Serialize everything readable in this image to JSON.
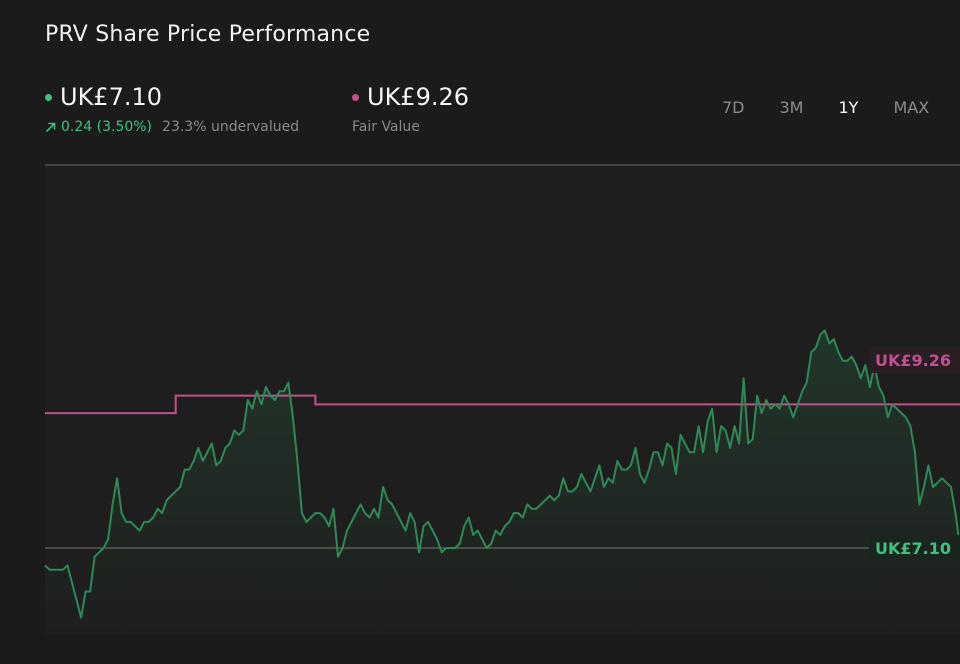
{
  "header": {
    "title": "PRV Share Price Performance",
    "price": "UK£7.10",
    "change": "0.24 (3.50%)",
    "valuation": "23.3% undervalued",
    "fair_value": "UK£9.26",
    "fair_value_label": "Fair Value"
  },
  "range_tabs": [
    {
      "label": "7D",
      "active": false
    },
    {
      "label": "3M",
      "active": false
    },
    {
      "label": "1Y",
      "active": true
    },
    {
      "label": "MAX",
      "active": false
    }
  ],
  "colors": {
    "price": "#3fc27c",
    "price_line": "#2e8a55",
    "fair_value": "#c2508d",
    "background": "#1b1b1b"
  },
  "chart_data": {
    "type": "line",
    "title": "PRV Share Price Performance",
    "xlabel": "",
    "ylabel": "",
    "ylim": [
      6.1,
      11.5
    ],
    "grid": false,
    "series": [
      {
        "key": "price",
        "values": [
          6.9,
          6.85,
          6.85,
          6.85,
          6.85,
          6.9,
          6.7,
          6.5,
          6.3,
          6.6,
          6.6,
          7.0,
          7.05,
          7.1,
          7.2,
          7.6,
          7.9,
          7.5,
          7.4,
          7.4,
          7.35,
          7.3,
          7.4,
          7.4,
          7.45,
          7.55,
          7.5,
          7.65,
          7.7,
          7.75,
          7.8,
          8.0,
          8.0,
          8.1,
          8.25,
          8.1,
          8.2,
          8.3,
          8.05,
          8.1,
          8.25,
          8.3,
          8.45,
          8.4,
          8.45,
          8.8,
          8.7,
          8.9,
          8.75,
          8.95,
          8.85,
          8.8,
          8.9,
          8.9,
          9.0,
          8.6,
          8.1,
          7.5,
          7.4,
          7.45,
          7.5,
          7.5,
          7.45,
          7.35,
          7.55,
          7.0,
          7.1,
          7.3,
          7.4,
          7.5,
          7.6,
          7.5,
          7.45,
          7.55,
          7.45,
          7.8,
          7.65,
          7.6,
          7.5,
          7.4,
          7.3,
          7.5,
          7.4,
          7.05,
          7.35,
          7.4,
          7.3,
          7.2,
          7.05,
          7.1,
          7.1,
          7.1,
          7.15,
          7.35,
          7.45,
          7.25,
          7.3,
          7.2,
          7.1,
          7.15,
          7.3,
          7.25,
          7.35,
          7.4,
          7.5,
          7.5,
          7.45,
          7.6,
          7.55,
          7.55,
          7.6,
          7.65,
          7.7,
          7.65,
          7.7,
          7.9,
          7.75,
          7.75,
          7.8,
          7.95,
          7.85,
          7.75,
          7.9,
          8.05,
          7.8,
          7.9,
          7.85,
          8.1,
          8.0,
          8.0,
          8.05,
          8.25,
          7.95,
          7.85,
          8.0,
          8.2,
          8.2,
          8.05,
          8.3,
          8.25,
          7.95,
          8.4,
          8.3,
          8.2,
          8.2,
          8.5,
          8.2,
          8.55,
          8.7,
          8.2,
          8.5,
          8.45,
          8.25,
          8.5,
          8.3,
          9.05,
          8.3,
          8.35,
          8.85,
          8.65,
          8.8,
          8.7,
          8.75,
          8.7,
          8.85,
          8.75,
          8.6,
          8.75,
          8.9,
          9.0,
          9.35,
          9.4,
          9.55,
          9.6,
          9.45,
          9.5,
          9.35,
          9.25,
          9.25,
          9.3,
          9.2,
          9.05,
          9.2,
          8.95,
          9.2,
          8.95,
          8.85,
          8.6,
          8.75,
          8.7,
          8.65,
          8.6,
          8.5,
          8.2,
          7.6,
          7.8,
          8.05,
          7.8,
          7.85,
          7.9,
          7.85,
          7.8,
          7.5,
          7.1
        ]
      },
      {
        "key": "fair_value",
        "step": true,
        "values": [
          8.65,
          8.65,
          8.65,
          8.65,
          8.65,
          8.65,
          8.65,
          8.65,
          8.65,
          8.65,
          8.65,
          8.65,
          8.65,
          8.65,
          8.65,
          8.65,
          8.65,
          8.65,
          8.65,
          8.65,
          8.65,
          8.65,
          8.65,
          8.65,
          8.65,
          8.65,
          8.65,
          8.65,
          8.65,
          8.85,
          8.85,
          8.85,
          8.85,
          8.85,
          8.85,
          8.85,
          8.85,
          8.85,
          8.85,
          8.85,
          8.85,
          8.85,
          8.85,
          8.85,
          8.85,
          8.85,
          8.85,
          8.85,
          8.85,
          8.85,
          8.85,
          8.85,
          8.85,
          8.85,
          8.85,
          8.85,
          8.85,
          8.85,
          8.85,
          8.85,
          8.75,
          8.75,
          8.75,
          8.75,
          8.75,
          8.75,
          8.75,
          8.75,
          8.75,
          8.75,
          8.75,
          8.75,
          8.75,
          8.75,
          8.75,
          8.75,
          8.75,
          8.75,
          8.75,
          8.75,
          8.75,
          8.75,
          8.75,
          8.75,
          8.75,
          8.75,
          8.75,
          8.75,
          8.75,
          8.75,
          8.75,
          8.75,
          8.75,
          8.75,
          8.75,
          8.75,
          8.75,
          8.75,
          8.75,
          8.75,
          8.75,
          8.75,
          8.75,
          8.75,
          8.75,
          8.75,
          8.75,
          8.75,
          8.75,
          8.75,
          8.75,
          8.75,
          8.75,
          8.75,
          8.75,
          8.75,
          8.75,
          8.75,
          8.75,
          8.75,
          8.75,
          8.75,
          8.75,
          8.75,
          8.75,
          8.75,
          8.75,
          8.75,
          8.75,
          8.75,
          8.75,
          8.75,
          8.75,
          8.75,
          8.75,
          8.75,
          8.75,
          8.75,
          8.75,
          8.75,
          8.75,
          8.75,
          8.75,
          8.75,
          8.75,
          8.75,
          8.75,
          8.75,
          8.75,
          8.75,
          8.75,
          8.75,
          8.75,
          8.75,
          8.75,
          8.75,
          8.75,
          8.75,
          8.75,
          8.75,
          8.75,
          8.75,
          8.75,
          8.75,
          8.75,
          8.75,
          8.75,
          8.75,
          8.75,
          8.75,
          8.75,
          8.75,
          8.75,
          8.75,
          8.75,
          8.75,
          8.75,
          8.75,
          8.75,
          8.75,
          8.75,
          8.75,
          8.75,
          8.75,
          8.75,
          8.75,
          8.75,
          8.75,
          8.75,
          8.75,
          8.75,
          8.75,
          8.75,
          8.75,
          8.75,
          8.75,
          8.75,
          8.75,
          8.75,
          8.75,
          8.75,
          8.75,
          8.75,
          8.75,
          8.75,
          9.26,
          9.26,
          9.26,
          9.26,
          9.26,
          9.26,
          9.26,
          9.26,
          9.26,
          9.26,
          9.26,
          9.26,
          9.26,
          9.26,
          9.26,
          9.26,
          9.26
        ]
      }
    ],
    "reference_lines": [
      {
        "key": "top",
        "y": 11.5
      },
      {
        "key": "current",
        "y": 7.1
      }
    ],
    "labels": {
      "fair_value": "UK£9.26",
      "price": "UK£7.10"
    }
  }
}
